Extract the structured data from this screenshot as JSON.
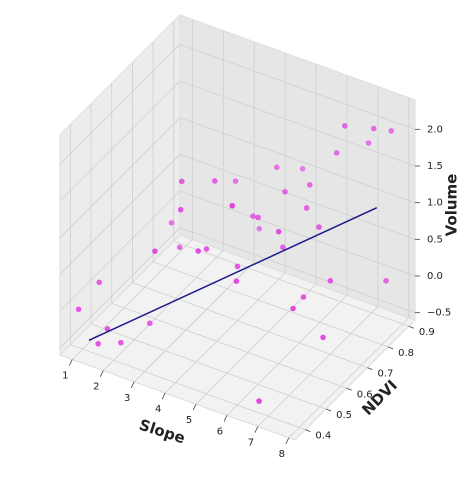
{
  "chart_data": {
    "type": "scatter3d",
    "xlabel": "Slope",
    "ylabel": "NDVI",
    "zlabel": "Volume",
    "xlim": [
      0.6,
      8.2
    ],
    "ylim": [
      0.35,
      0.93
    ],
    "zlim": [
      -0.6,
      2.4
    ],
    "xticks": [
      1,
      2,
      3,
      4,
      5,
      6,
      7,
      8
    ],
    "yticks": [
      0.4,
      0.5,
      0.6,
      0.7,
      0.8,
      0.9
    ],
    "zticks": [
      {
        "value": -0.5,
        "label": "−0.5"
      },
      {
        "value": 0,
        "label": "0.0"
      },
      0.5,
      {
        "value": 1,
        "label": "1.0"
      },
      1.5,
      {
        "value": 2,
        "label": "2.0"
      }
    ],
    "grid": true,
    "series": [
      {
        "color": "#e020e0",
        "x": [
          2.1,
          5.5,
          6.8,
          7.2,
          6.0,
          6.5,
          4.0,
          3.5,
          5.0,
          6.2,
          4.5,
          3.0,
          5.8,
          7.5,
          2.5,
          1.5,
          3.8,
          4.8,
          5.2,
          6.9,
          7.8,
          2.8,
          4.2,
          5.6,
          6.4,
          3.2,
          1.2,
          1.8,
          4.6,
          5.9,
          7.0,
          3.6,
          2.2,
          6.6,
          5.3,
          4.9,
          7.3,
          1.0,
          3.9,
          6.1
        ],
        "y": [
          0.42,
          0.45,
          0.8,
          0.88,
          0.6,
          0.72,
          0.55,
          0.5,
          0.65,
          0.85,
          0.7,
          0.45,
          0.78,
          0.92,
          0.5,
          0.4,
          0.62,
          0.58,
          0.75,
          0.9,
          0.85,
          0.6,
          0.48,
          0.68,
          0.66,
          0.55,
          0.45,
          0.4,
          0.8,
          0.52,
          0.7,
          0.75,
          0.65,
          0.58,
          0.5,
          0.88,
          0.62,
          0.38,
          0.82,
          0.72
        ],
        "z": [
          -0.4,
          1.9,
          2.2,
          2.0,
          1.2,
          1.0,
          0.8,
          1.4,
          1.1,
          1.6,
          0.9,
          0.9,
          1.3,
          1.9,
          -0.3,
          -0.45,
          1.5,
          0.6,
          1.2,
          1.7,
          0.1,
          0.5,
          1.0,
          0.7,
          0.2,
          1.6,
          0.2,
          -0.2,
          1.3,
          -0.9,
          0.4,
          1.1,
          0.6,
          0.3,
          0.7,
          1.1,
          -0.1,
          0.0,
          0.3,
          1.2
        ]
      },
      {
        "type": "line",
        "color": "#1a1a8c",
        "x": [
          1.2,
          7.5
        ],
        "y": [
          0.4,
          0.85
        ],
        "z": [
          -0.45,
          1.05
        ]
      }
    ]
  }
}
